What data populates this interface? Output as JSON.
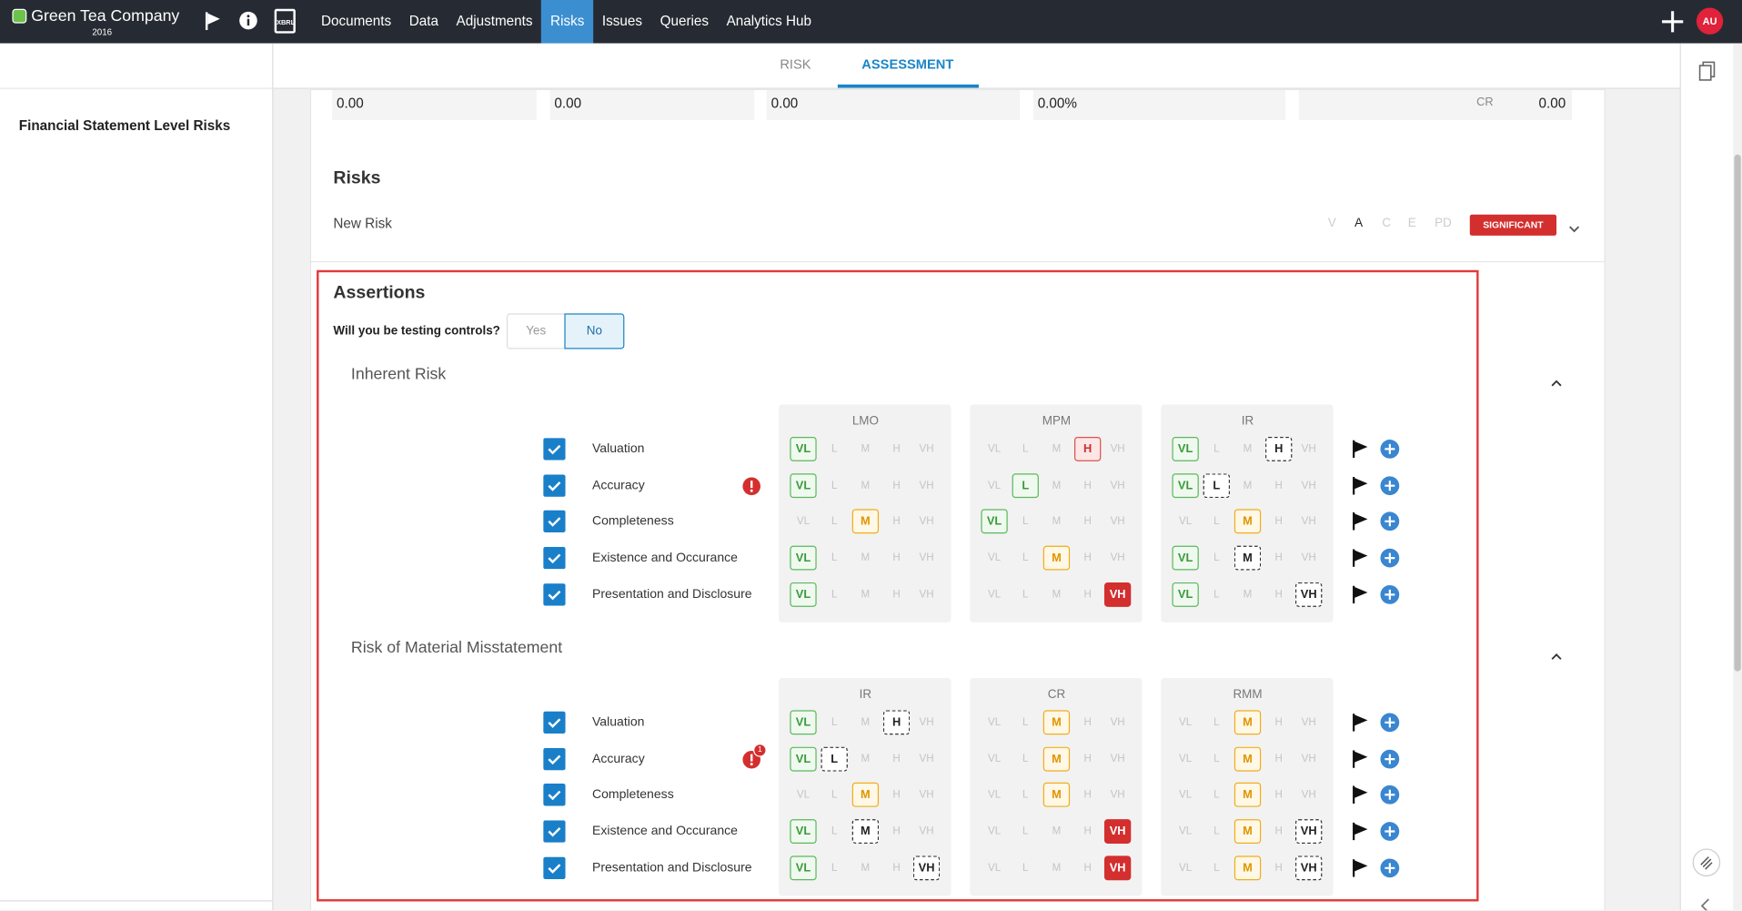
{
  "nav": {
    "brand": "Green Tea Company",
    "year": "2016",
    "xbrl": "XBRL",
    "items": [
      "Documents",
      "Data",
      "Adjustments",
      "Risks",
      "Issues",
      "Queries",
      "Analytics Hub"
    ],
    "active": "Risks",
    "avatar": "AU"
  },
  "tabs": {
    "items": [
      "RISK",
      "ASSESSMENT"
    ],
    "active": "ASSESSMENT"
  },
  "sidebar": {
    "title": "Financial Statement Level Risks"
  },
  "summary": {
    "fields": [
      "0.00",
      "0.00",
      "0.00",
      "0.00%"
    ],
    "cr_label": "CR",
    "cr_value": "0.00"
  },
  "risks": {
    "title": "Risks",
    "item": "New Risk",
    "flags": [
      "V",
      "A",
      "C",
      "E",
      "PD"
    ],
    "active_flag": "A",
    "badge": "SIGNIFICANT"
  },
  "assertions": {
    "title": "Assertions",
    "question": "Will you be testing controls?",
    "options": [
      "Yes",
      "No"
    ],
    "selected": "No",
    "levels": [
      "VL",
      "L",
      "M",
      "H",
      "VH"
    ],
    "sections": [
      {
        "title": "Inherent Risk",
        "rows": [
          {
            "name": "Valuation"
          },
          {
            "name": "Accuracy",
            "alert": true
          },
          {
            "name": "Completeness"
          },
          {
            "name": "Existence and Occurance"
          },
          {
            "name": "Presentation and Disclosure"
          }
        ],
        "groups": [
          {
            "name": "LMO",
            "cells": [
              {
                "solid": "VL"
              },
              {
                "solid": "VL"
              },
              {
                "solid": "M"
              },
              {
                "solid": "VL"
              },
              {
                "solid": "VL"
              }
            ]
          },
          {
            "name": "MPM",
            "cells": [
              {
                "solid": "H"
              },
              {
                "solid": "L"
              },
              {
                "solid": "VL"
              },
              {
                "solid": "M"
              },
              {
                "solid": "VH"
              }
            ]
          },
          {
            "name": "IR",
            "cells": [
              {
                "solid": "VL",
                "dashed": "H"
              },
              {
                "solid": "VL",
                "dashed": "L"
              },
              {
                "solid": "M"
              },
              {
                "solid": "VL",
                "dashed": "M"
              },
              {
                "solid": "VL",
                "dashed": "VH"
              }
            ]
          }
        ]
      },
      {
        "title": "Risk of Material Misstatement",
        "rows": [
          {
            "name": "Valuation"
          },
          {
            "name": "Accuracy",
            "alert": true,
            "alert_count": "1"
          },
          {
            "name": "Completeness"
          },
          {
            "name": "Existence and Occurance"
          },
          {
            "name": "Presentation and Disclosure"
          }
        ],
        "groups": [
          {
            "name": "IR",
            "cells": [
              {
                "solid": "VL",
                "dashed": "H"
              },
              {
                "solid": "VL",
                "dashed": "L"
              },
              {
                "solid": "M"
              },
              {
                "solid": "VL",
                "dashed": "M"
              },
              {
                "solid": "VL",
                "dashed": "VH"
              }
            ]
          },
          {
            "name": "CR",
            "cells": [
              {
                "solid": "M"
              },
              {
                "solid": "M"
              },
              {
                "solid": "M"
              },
              {
                "solid": "VH"
              },
              {
                "solid": "VH"
              }
            ]
          },
          {
            "name": "RMM",
            "cells": [
              {
                "solid": "M"
              },
              {
                "solid": "M"
              },
              {
                "solid": "M"
              },
              {
                "solid": "M",
                "dashed": "VH"
              },
              {
                "solid": "M",
                "dashed": "VH"
              }
            ]
          }
        ]
      }
    ]
  }
}
